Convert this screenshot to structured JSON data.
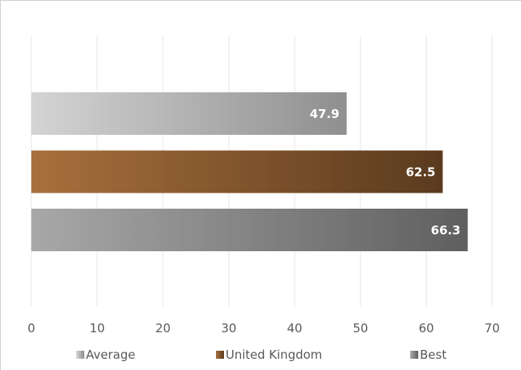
{
  "chart_data": {
    "type": "bar",
    "orientation": "horizontal",
    "title": "",
    "xlabel": "",
    "ylabel": "",
    "xlim": [
      0,
      70
    ],
    "ticks": [
      0,
      10,
      20,
      30,
      40,
      50,
      60,
      70
    ],
    "tick_labels": [
      "0",
      "10",
      "20",
      "30",
      "40",
      "50",
      "60",
      "70"
    ],
    "grid": true,
    "legend_position": "bottom",
    "series": [
      {
        "name": "Average",
        "value": 47.9,
        "label": "47.9",
        "color_start": "#d4d4d4",
        "color_end": "#8f8f8f"
      },
      {
        "name": "United Kingdom",
        "value": 62.5,
        "label": "62.5",
        "color_start": "#a8703c",
        "color_end": "#5a3a1e"
      },
      {
        "name": "Best",
        "value": 66.3,
        "label": "66.3",
        "color_start": "#a8a8a8",
        "color_end": "#5f5f5f"
      }
    ]
  }
}
